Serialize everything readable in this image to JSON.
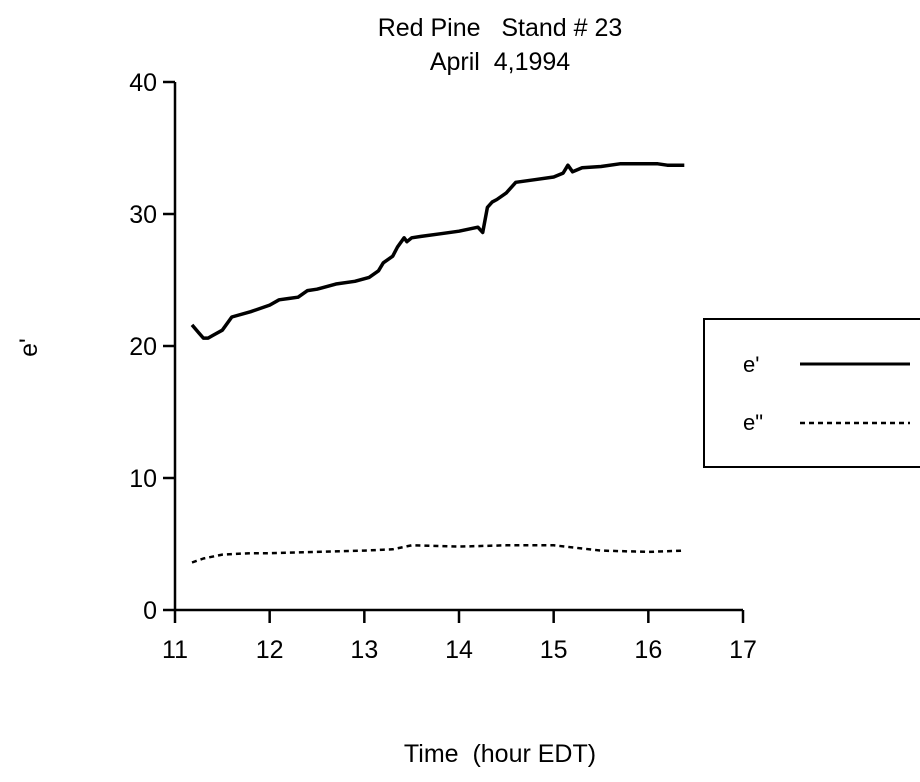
{
  "chart_data": {
    "type": "line",
    "title": "Red Pine   Stand # 23",
    "subtitle": "April  4,1994",
    "xlabel": "Time  (hour EDT)",
    "ylabel": "e'",
    "xlim": [
      11,
      17
    ],
    "ylim": [
      0,
      40
    ],
    "xticks": [
      11,
      12,
      13,
      14,
      15,
      16,
      17
    ],
    "yticks": [
      0,
      10,
      20,
      30,
      40
    ],
    "grid": false,
    "legend_position": "right",
    "series": [
      {
        "name": "e'",
        "style": "solid",
        "color": "#000000",
        "x": [
          11.18,
          11.25,
          11.3,
          11.35,
          11.4,
          11.5,
          11.6,
          11.8,
          12.0,
          12.1,
          12.2,
          12.3,
          12.4,
          12.5,
          12.55,
          12.7,
          12.9,
          13.05,
          13.15,
          13.2,
          13.3,
          13.35,
          13.42,
          13.45,
          13.5,
          13.6,
          13.8,
          14.0,
          14.2,
          14.25,
          14.3,
          14.35,
          14.4,
          14.5,
          14.6,
          14.8,
          15.0,
          15.1,
          15.15,
          15.2,
          15.3,
          15.5,
          15.7,
          15.9,
          16.1,
          16.2,
          16.38
        ],
        "y": [
          21.6,
          21.0,
          20.6,
          20.6,
          20.8,
          21.2,
          22.2,
          22.6,
          23.1,
          23.5,
          23.6,
          23.7,
          24.2,
          24.3,
          24.4,
          24.7,
          24.9,
          25.2,
          25.7,
          26.3,
          26.8,
          27.5,
          28.2,
          27.9,
          28.2,
          28.3,
          28.5,
          28.7,
          29.0,
          28.6,
          30.5,
          30.9,
          31.1,
          31.6,
          32.4,
          32.6,
          32.8,
          33.1,
          33.7,
          33.2,
          33.5,
          33.6,
          33.8,
          33.8,
          33.8,
          33.7,
          33.7
        ]
      },
      {
        "name": "e\"",
        "style": "dotted",
        "color": "#000000",
        "x": [
          11.18,
          11.3,
          11.5,
          11.8,
          12.0,
          12.5,
          13.0,
          13.3,
          13.5,
          14.0,
          14.5,
          15.0,
          15.5,
          16.0,
          16.38
        ],
        "y": [
          3.6,
          3.9,
          4.2,
          4.3,
          4.3,
          4.4,
          4.5,
          4.6,
          4.9,
          4.8,
          4.9,
          4.9,
          4.5,
          4.4,
          4.5
        ]
      }
    ]
  }
}
